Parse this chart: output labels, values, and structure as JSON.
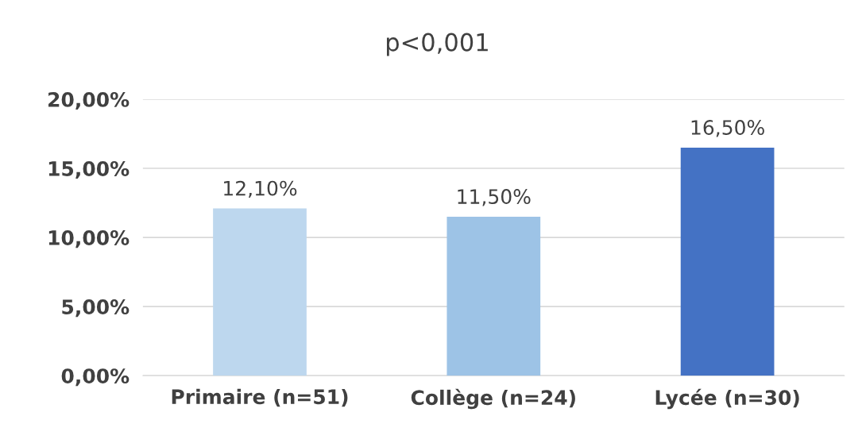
{
  "chart_data": {
    "type": "bar",
    "title": "p<0,001",
    "categories": [
      "Primaire (n=51)",
      "Collège (n=24)",
      "Lycée (n=30)"
    ],
    "values": [
      12.1,
      11.5,
      16.5
    ],
    "colors": [
      "#bdd7ee",
      "#9dc3e6",
      "#4472c4"
    ],
    "value_labels": [
      "12,10%",
      "11,50%",
      "16,50%"
    ],
    "ylim": [
      0,
      20
    ],
    "yticks": [
      {
        "value": 0,
        "label": "0,00%"
      },
      {
        "value": 5,
        "label": "5,00%"
      },
      {
        "value": 10,
        "label": "10,00%"
      },
      {
        "value": 15,
        "label": "15,00%"
      },
      {
        "value": 20,
        "label": "20,00%"
      }
    ],
    "grid": "y",
    "legend": false
  }
}
